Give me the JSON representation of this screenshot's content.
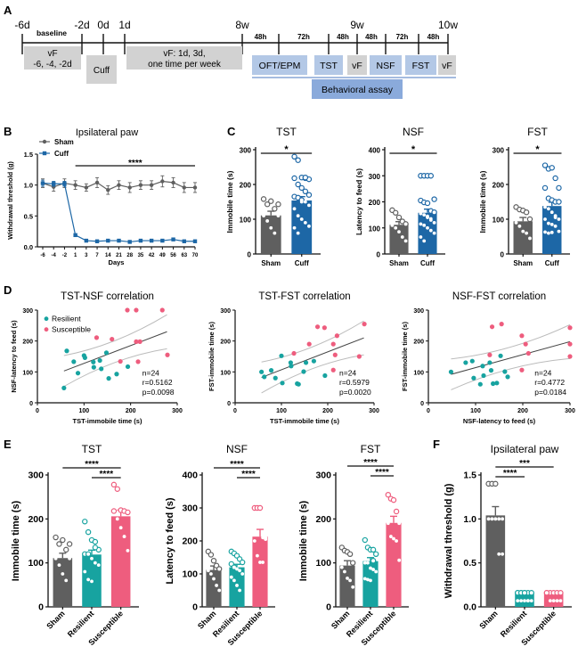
{
  "colors": {
    "sham": "#5f5f5f",
    "cuff": "#1d67a6",
    "resilient": "#17a3a0",
    "susceptible": "#ee5d7e",
    "gray_box": "#d2d2d2",
    "blue_box": "#b3c8e6",
    "assay_box": "#8aaadb",
    "ci_line": "#bbbbbb",
    "fit_line": "#444444"
  },
  "panel_labels": {
    "A": "A",
    "B": "B",
    "C": "C",
    "D": "D",
    "E": "E",
    "F": "F"
  },
  "timeline": {
    "ticks": [
      {
        "label": "-6d",
        "pos": 0
      },
      {
        "label": "-2d",
        "pos": 1
      },
      {
        "label": "0d",
        "pos": 2
      },
      {
        "label": "1d",
        "pos": 3
      },
      {
        "label": "8w",
        "pos": 4
      },
      {
        "label": "",
        "pos": 5
      },
      {
        "label": "",
        "pos": 6
      },
      {
        "label": "9w",
        "pos": 7
      },
      {
        "label": "",
        "pos": 8
      },
      {
        "label": "",
        "pos": 9
      },
      {
        "label": "10w",
        "pos": 10
      }
    ],
    "baseline_label": "baseline",
    "intervals": [
      "48h",
      "72h",
      "48h",
      "48h",
      "72h",
      "48h"
    ],
    "gray_boxes": [
      {
        "line1": "vF",
        "line2": "-6, -4, -2d"
      },
      {
        "line1": "Cuff",
        "line2": ""
      },
      {
        "line1": "vF: 1d, 3d,",
        "line2": "one time per week"
      }
    ],
    "test_boxes": [
      {
        "label": "OFT/EPM",
        "type": "blue"
      },
      {
        "label": "TST",
        "type": "blue"
      },
      {
        "label": "vF",
        "type": "gray"
      },
      {
        "label": "NSF",
        "type": "blue"
      },
      {
        "label": "FST",
        "type": "blue"
      },
      {
        "label": "vF",
        "type": "gray"
      }
    ],
    "assay_label": "Behavioral assay"
  },
  "chart_data": [
    {
      "id": "B",
      "type": "line",
      "title": "Ipsilateral paw",
      "xlabel": "Days",
      "ylabel": "Withdrawal threshold (g)",
      "categories": [
        "-6",
        "-4",
        "-2",
        "1",
        "3",
        "7",
        "14",
        "21",
        "28",
        "35",
        "42",
        "49",
        "56",
        "63",
        "70"
      ],
      "ylim": [
        0,
        1.5
      ],
      "yticks": [
        "0.0",
        "0.5",
        "1.0",
        "1.5"
      ],
      "significance": "****",
      "legend": [
        "Sham",
        "Cuff"
      ],
      "series": [
        {
          "name": "Sham",
          "values": [
            1.03,
            0.97,
            1.03,
            1.0,
            0.96,
            1.04,
            0.92,
            1.0,
            0.96,
            1.0,
            1.0,
            1.06,
            1.04,
            0.96,
            0.96
          ],
          "sem": [
            0.07,
            0.07,
            0.07,
            0.07,
            0.06,
            0.08,
            0.07,
            0.07,
            0.08,
            0.07,
            0.07,
            0.09,
            0.08,
            0.08,
            0.08
          ]
        },
        {
          "name": "Cuff",
          "values": [
            1.03,
            1.02,
            1.02,
            0.19,
            0.1,
            0.09,
            0.1,
            0.1,
            0.08,
            0.1,
            0.1,
            0.1,
            0.12,
            0.09,
            0.09
          ],
          "sem": [
            0.05,
            0.04,
            0.04,
            0.02,
            0.01,
            0.01,
            0.01,
            0.01,
            0.01,
            0.01,
            0.01,
            0.01,
            0.01,
            0.01,
            0.01
          ]
        }
      ]
    },
    {
      "id": "C-TST",
      "type": "bar",
      "title": "TST",
      "ylabel": "Immobile time (s)",
      "ylim": [
        0,
        300
      ],
      "yticks": [
        "0",
        "100",
        "200",
        "300"
      ],
      "categories": [
        "Sham",
        "Cuff"
      ],
      "values": [
        111,
        154
      ],
      "sem": [
        12,
        11
      ],
      "significance": [
        {
          "from": 0,
          "to": 1,
          "label": "*"
        }
      ],
      "points": [
        [
          158,
          143,
          152,
          130,
          110,
          110,
          95,
          75,
          60,
          143
        ],
        [
          280,
          270,
          220,
          218,
          215,
          218,
          200,
          190,
          180,
          170,
          165,
          162,
          155,
          150,
          140,
          130,
          110,
          100,
          90,
          80,
          75,
          60,
          150,
          220
        ]
      ]
    },
    {
      "id": "C-NSF",
      "type": "bar",
      "title": "NSF",
      "ylabel": "Latency to feed (s)",
      "ylim": [
        0,
        400
      ],
      "yticks": [
        "0",
        "100",
        "200",
        "300",
        "400"
      ],
      "categories": [
        "Sham",
        "Cuff"
      ],
      "values": [
        112,
        158
      ],
      "sem": [
        12,
        14
      ],
      "significance": [
        {
          "from": 0,
          "to": 1,
          "label": "*"
        }
      ],
      "points": [
        [
          168,
          158,
          140,
          125,
          115,
          110,
          100,
          85,
          65,
          50
        ],
        [
          300,
          300,
          300,
          300,
          210,
          205,
          198,
          195,
          165,
          160,
          155,
          150,
          140,
          130,
          120,
          115,
          110,
          100,
          90,
          80,
          65,
          50,
          145,
          135
        ]
      ]
    },
    {
      "id": "C-FST",
      "type": "bar",
      "title": "FST",
      "ylabel": "Immobile time (s)",
      "ylim": [
        0,
        300
      ],
      "yticks": [
        "0",
        "100",
        "200",
        "300"
      ],
      "categories": [
        "Sham",
        "Cuff"
      ],
      "values": [
        94,
        138
      ],
      "sem": [
        11,
        11
      ],
      "significance": [
        {
          "from": 0,
          "to": 1,
          "label": "*"
        }
      ],
      "points": [
        [
          135,
          128,
          125,
          120,
          100,
          90,
          80,
          65,
          60,
          45
        ],
        [
          255,
          245,
          248,
          218,
          190,
          190,
          160,
          155,
          150,
          150,
          135,
          130,
          120,
          105,
          100,
          100,
          88,
          85,
          80,
          65,
          63,
          60,
          62,
          110
        ]
      ]
    },
    {
      "id": "D-TST-NSF",
      "type": "scatter",
      "title": "TST-NSF correlation",
      "xlabel": "TST-immobile time (s)",
      "ylabel": "NSF-latency to feed (s)",
      "xlim": [
        0,
        300
      ],
      "ylim": [
        0,
        300
      ],
      "xticks": [
        "0",
        "100",
        "200",
        "300"
      ],
      "yticks": [
        "0",
        "100",
        "200",
        "300"
      ],
      "legend": [
        "Resilient",
        "Susceptible"
      ],
      "stats": {
        "n": "n=24",
        "r": "r=0.5162",
        "p": "p=0.0098"
      },
      "fit": {
        "x0": 57,
        "y0": 103,
        "x1": 278,
        "y1": 230
      },
      "series": [
        {
          "name": "Resilient",
          "x": [
            57,
            63,
            78,
            87,
            100,
            102,
            120,
            121,
            134,
            137,
            148,
            153,
            170,
            194
          ],
          "y": [
            48,
            168,
            133,
            96,
            153,
            146,
            132,
            115,
            137,
            110,
            162,
            79,
            93,
            117
          ]
        },
        {
          "name": "Susceptible",
          "x": [
            127,
            160,
            178,
            193,
            212,
            212,
            216,
            220,
            268,
            279
          ],
          "y": [
            211,
            206,
            134,
            300,
            300,
            198,
            133,
            198,
            300,
            155
          ]
        }
      ]
    },
    {
      "id": "D-TST-FST",
      "type": "scatter",
      "title": "TST-FST correlation",
      "xlabel": "TST-immobile time (s)",
      "ylabel": "FST-immobile time (s)",
      "xlim": [
        0,
        300
      ],
      "ylim": [
        0,
        300
      ],
      "xticks": [
        "0",
        "100",
        "200",
        "300"
      ],
      "yticks": [
        "0",
        "100",
        "200",
        "300"
      ],
      "stats": {
        "n": "n=24",
        "r": "r=0.5979",
        "p": "p=0.0020"
      },
      "fit": {
        "x0": 57,
        "y0": 82,
        "x1": 278,
        "y1": 210
      },
      "series": [
        {
          "name": "Resilient",
          "x": [
            57,
            63,
            78,
            87,
            100,
            102,
            120,
            121,
            134,
            137,
            148,
            153,
            170,
            194
          ],
          "y": [
            100,
            84,
            105,
            80,
            152,
            64,
            130,
            119,
            62,
            60,
            101,
            130,
            135,
            88
          ]
        },
        {
          "name": "Susceptible",
          "x": [
            127,
            160,
            178,
            193,
            212,
            212,
            216,
            220,
            268,
            279
          ],
          "y": [
            160,
            190,
            246,
            243,
            190,
            106,
            155,
            217,
            150,
            255
          ]
        }
      ]
    },
    {
      "id": "D-NSF-FST",
      "type": "scatter",
      "title": "NSF-FST correlation",
      "xlabel": "NSF-latency to feed (s)",
      "ylabel": "FST-immobile time (s)",
      "xlim": [
        0,
        300
      ],
      "ylim": [
        0,
        300
      ],
      "xticks": [
        "0",
        "100",
        "200",
        "300"
      ],
      "yticks": [
        "0",
        "100",
        "200",
        "300"
      ],
      "stats": {
        "n": "n=24",
        "r": "r=0.4772",
        "p": "p=0.0184"
      },
      "fit": {
        "x0": 48,
        "y0": 92,
        "x1": 300,
        "y1": 198
      },
      "series": [
        {
          "name": "Resilient",
          "x": [
            48,
            79,
            93,
            96,
            110,
            115,
            117,
            130,
            133,
            137,
            145,
            153,
            162,
            168
          ],
          "y": [
            100,
            130,
            135,
            80,
            60,
            119,
            88,
            130,
            105,
            62,
            64,
            152,
            101,
            84
          ]
        },
        {
          "name": "Susceptible",
          "x": [
            130,
            135,
            155,
            198,
            198,
            206,
            212,
            300,
            300,
            300
          ],
          "y": [
            155,
            246,
            255,
            217,
            106,
            190,
            160,
            243,
            190,
            150
          ]
        }
      ]
    },
    {
      "id": "E-TST",
      "type": "bar",
      "title": "TST",
      "ylabel": "Immobile time (s)",
      "ylim": [
        0,
        300
      ],
      "yticks": [
        "0",
        "100",
        "200",
        "300"
      ],
      "categories": [
        "Sham",
        "Resilient",
        "Susceptible"
      ],
      "values": [
        111,
        119,
        206
      ],
      "sem": [
        11,
        10,
        14
      ],
      "significance": [
        {
          "from": 0,
          "to": 2,
          "label": "****"
        },
        {
          "from": 1,
          "to": 2,
          "label": "****"
        }
      ],
      "points": [
        [
          158,
          143,
          152,
          130,
          110,
          110,
          95,
          75,
          60,
          143
        ],
        [
          194,
          170,
          152,
          148,
          130,
          120,
          120,
          110,
          100,
          95,
          80,
          62,
          58,
          135
        ],
        [
          278,
          268,
          220,
          218,
          215,
          218,
          200,
          180,
          160,
          128
        ]
      ]
    },
    {
      "id": "E-NSF",
      "type": "bar",
      "title": "NSF",
      "ylabel": "Latency to feed (s)",
      "ylim": [
        0,
        400
      ],
      "yticks": [
        "0",
        "100",
        "200",
        "300",
        "400"
      ],
      "categories": [
        "Sham",
        "Resilient",
        "Susceptible"
      ],
      "values": [
        112,
        120,
        213
      ],
      "sem": [
        12,
        9,
        22
      ],
      "significance": [
        {
          "from": 0,
          "to": 2,
          "label": "****"
        },
        {
          "from": 1,
          "to": 2,
          "label": "****"
        }
      ],
      "points": [
        [
          168,
          158,
          140,
          125,
          115,
          110,
          100,
          85,
          65,
          50
        ],
        [
          168,
          162,
          155,
          145,
          135,
          130,
          120,
          115,
          110,
          100,
          90,
          80,
          65,
          50
        ],
        [
          300,
          300,
          300,
          210,
          205,
          200,
          155,
          135,
          135,
          210
        ]
      ]
    },
    {
      "id": "E-FST",
      "type": "bar",
      "title": "FST",
      "ylabel": "Immobile time (s)",
      "ylim": [
        0,
        300
      ],
      "yticks": [
        "0",
        "100",
        "200",
        "300"
      ],
      "categories": [
        "Sham",
        "Resilient",
        "Susceptible"
      ],
      "values": [
        94,
        104,
        191
      ],
      "sem": [
        11,
        8,
        15
      ],
      "significance": [
        {
          "from": 0,
          "to": 2,
          "label": "****"
        },
        {
          "from": 1,
          "to": 2,
          "label": "****"
        }
      ],
      "points": [
        [
          135,
          128,
          125,
          120,
          100,
          90,
          80,
          65,
          60,
          45
        ],
        [
          152,
          135,
          130,
          130,
          120,
          100,
          100,
          88,
          85,
          80,
          64,
          62,
          60,
          105
        ],
        [
          255,
          246,
          243,
          217,
          190,
          190,
          160,
          155,
          150,
          106
        ]
      ]
    },
    {
      "id": "F",
      "type": "bar",
      "title": "Ipsilateral paw",
      "ylabel": "Withdrawal threshold (g)",
      "ylim": [
        0,
        1.5
      ],
      "yticks": [
        "0.0",
        "0.5",
        "1.0",
        "1.5"
      ],
      "categories": [
        "Sham",
        "Resilient",
        "Susceptible"
      ],
      "values": [
        1.04,
        0.16,
        0.16
      ],
      "sem": [
        0.1,
        0.01,
        0.01
      ],
      "significance": [
        {
          "from": 0,
          "to": 1,
          "label": "****"
        },
        {
          "from": 0,
          "to": 2,
          "label": "***"
        }
      ],
      "points": [
        [
          1.4,
          1.4,
          1.4,
          1.0,
          1.0,
          1.0,
          1.0,
          1.0,
          0.6,
          0.6
        ],
        [
          0.16,
          0.16,
          0.16,
          0.16,
          0.16,
          0.16,
          0.16,
          0.16,
          0.07,
          0.07,
          0.07,
          0.07,
          0.07,
          0.07
        ],
        [
          0.16,
          0.16,
          0.16,
          0.16,
          0.16,
          0.16,
          0.07,
          0.07,
          0.07,
          0.07
        ]
      ]
    }
  ]
}
